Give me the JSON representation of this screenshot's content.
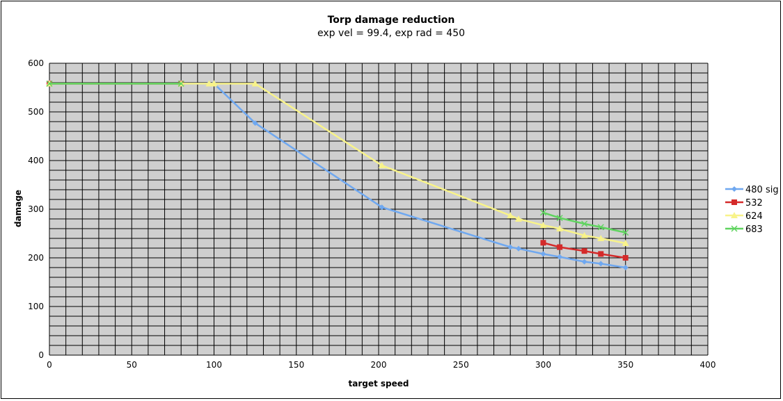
{
  "chart_data": {
    "type": "line",
    "title": "Torp damage reduction",
    "subtitle": "exp vel = 99.4, exp rad = 450",
    "xlabel": "target speed",
    "ylabel": "damage",
    "xlim": [
      0,
      400
    ],
    "ylim": [
      0,
      600
    ],
    "xticks": [
      0,
      50,
      100,
      150,
      200,
      250,
      300,
      350,
      400
    ],
    "yticks": [
      0,
      100,
      200,
      300,
      400,
      500,
      600
    ],
    "grid": true,
    "legend_position": "right",
    "x": [
      0,
      80,
      97,
      100,
      125,
      202,
      280,
      285,
      300,
      310,
      325,
      335,
      350
    ],
    "series": [
      {
        "name": "480 sig",
        "color": "#6fa8f0",
        "marker": "diamond",
        "values": [
          558,
          558,
          558,
          558,
          477,
          304,
          222,
          219,
          208,
          202,
          192,
          188,
          180
        ]
      },
      {
        "name": "532",
        "color": "#d42a2a",
        "marker": "square",
        "values": [
          558,
          558,
          null,
          null,
          null,
          null,
          null,
          null,
          231,
          222,
          214,
          208,
          200
        ]
      },
      {
        "name": "624",
        "color": "#f8f38a",
        "marker": "triangle",
        "values": [
          558,
          558,
          558,
          558,
          558,
          390,
          287,
          280,
          267,
          260,
          246,
          240,
          230
        ]
      },
      {
        "name": "683",
        "color": "#5fd35f",
        "marker": "x",
        "values": [
          558,
          558,
          null,
          null,
          null,
          null,
          null,
          null,
          293,
          282,
          270,
          263,
          252
        ]
      }
    ]
  }
}
